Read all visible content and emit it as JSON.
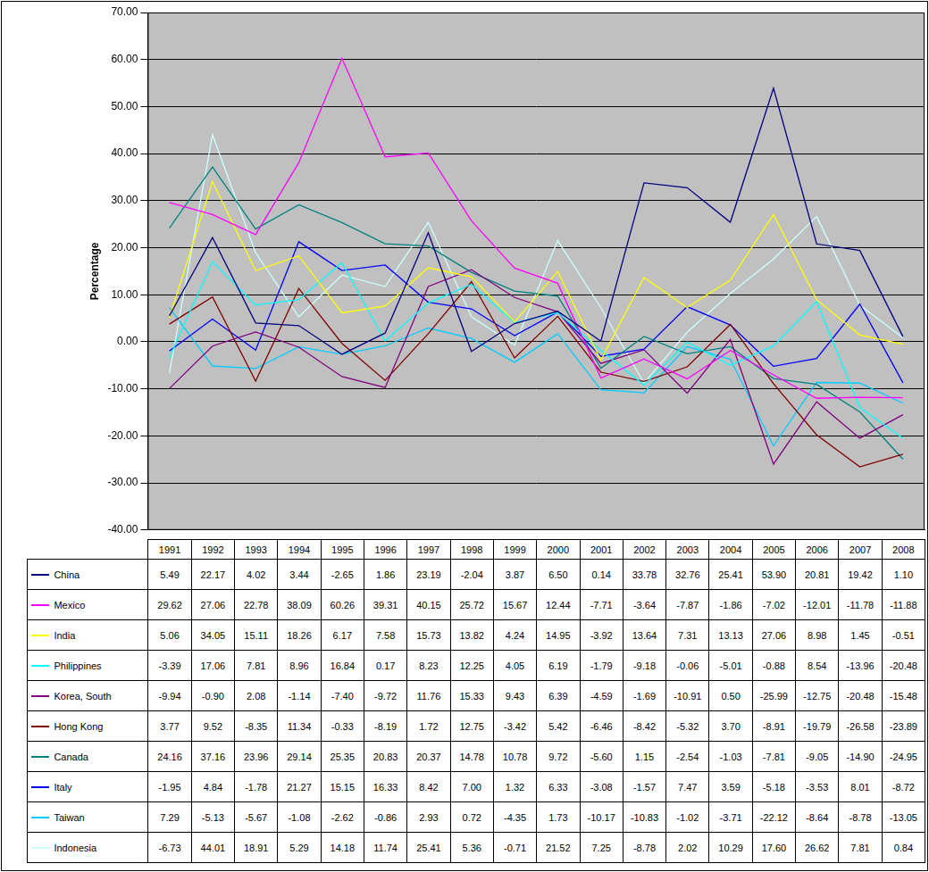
{
  "chart_data": {
    "type": "line",
    "y_label": "Percentage",
    "categories": [
      "1991",
      "1992",
      "1993",
      "1994",
      "1995",
      "1996",
      "1997",
      "1998",
      "1999",
      "2000",
      "2001",
      "2002",
      "2003",
      "2004",
      "2005",
      "2006",
      "2007",
      "2008"
    ],
    "ylim": [
      -40,
      70
    ],
    "yticks": [
      {
        "value": -40,
        "label": "-40.00"
      },
      {
        "value": -30,
        "label": "-30.00"
      },
      {
        "value": -20,
        "label": "-20.00"
      },
      {
        "value": -10,
        "label": "-10.00"
      },
      {
        "value": 0,
        "label": "0.00"
      },
      {
        "value": 10,
        "label": "10.00"
      },
      {
        "value": 20,
        "label": "20.00"
      },
      {
        "value": 30,
        "label": "30.00"
      },
      {
        "value": 40,
        "label": "40.00"
      },
      {
        "value": 50,
        "label": "50.00"
      },
      {
        "value": 60,
        "label": "60.00"
      },
      {
        "value": 70,
        "label": "70.00"
      }
    ],
    "grid": true,
    "legend": "bottom",
    "series": [
      {
        "name": "China",
        "color": "#000080",
        "values": [
          5.49,
          22.17,
          4.02,
          3.44,
          -2.65,
          1.86,
          23.19,
          -2.04,
          3.87,
          6.5,
          0.14,
          33.78,
          32.76,
          25.41,
          53.9,
          20.81,
          19.42,
          1.1
        ],
        "value_labels": [
          "5.49",
          "22.17",
          "4.02",
          "3.44",
          "-2.65",
          "1.86",
          "23.19",
          "-2.04",
          "3.87",
          "6.50",
          "0.14",
          "33.78",
          "32.76",
          "25.41",
          "53.90",
          "20.81",
          "19.42",
          "1.10"
        ]
      },
      {
        "name": "Mexico",
        "color": "#ff00ff",
        "values": [
          29.62,
          27.06,
          22.78,
          38.09,
          60.26,
          39.31,
          40.15,
          25.72,
          15.67,
          12.44,
          -7.71,
          -3.64,
          -7.87,
          -1.86,
          -7.02,
          -12.01,
          -11.78,
          -11.88
        ],
        "value_labels": [
          "29.62",
          "27.06",
          "22.78",
          "38.09",
          "60.26",
          "39.31",
          "40.15",
          "25.72",
          "15.67",
          "12.44",
          "-7.71",
          "-3.64",
          "-7.87",
          "-1.86",
          "-7.02",
          "-12.01",
          "-11.78",
          "-11.88"
        ]
      },
      {
        "name": "India",
        "color": "#ffff00",
        "values": [
          5.06,
          34.05,
          15.11,
          18.26,
          6.17,
          7.58,
          15.73,
          13.82,
          4.24,
          14.95,
          -3.92,
          13.64,
          7.31,
          13.13,
          27.06,
          8.98,
          1.45,
          -0.51
        ],
        "value_labels": [
          "5.06",
          "34.05",
          "15.11",
          "18.26",
          "6.17",
          "7.58",
          "15.73",
          "13.82",
          "4.24",
          "14.95",
          "-3.92",
          "13.64",
          "7.31",
          "13.13",
          "27.06",
          "8.98",
          "1.45",
          "-0.51"
        ]
      },
      {
        "name": "Philippines",
        "color": "#00ffff",
        "values": [
          -3.39,
          17.06,
          7.81,
          8.96,
          16.84,
          0.17,
          8.23,
          12.25,
          4.05,
          6.19,
          -1.79,
          -9.18,
          -0.06,
          -5.01,
          -0.88,
          8.54,
          -13.96,
          -20.48
        ],
        "value_labels": [
          "-3.39",
          "17.06",
          "7.81",
          "8.96",
          "16.84",
          "0.17",
          "8.23",
          "12.25",
          "4.05",
          "6.19",
          "-1.79",
          "-9.18",
          "-0.06",
          "-5.01",
          "-0.88",
          "8.54",
          "-13.96",
          "-20.48"
        ]
      },
      {
        "name": "Korea, South",
        "color": "#800080",
        "values": [
          -9.94,
          -0.9,
          2.08,
          -1.14,
          -7.4,
          -9.72,
          11.76,
          15.33,
          9.43,
          6.39,
          -4.59,
          -1.69,
          -10.91,
          0.5,
          -25.99,
          -12.75,
          -20.48,
          -15.48
        ],
        "value_labels": [
          "-9.94",
          "-0.90",
          "2.08",
          "-1.14",
          "-7.40",
          "-9.72",
          "11.76",
          "15.33",
          "9.43",
          "6.39",
          "-4.59",
          "-1.69",
          "-10.91",
          "0.50",
          "-25.99",
          "-12.75",
          "-20.48",
          "-15.48"
        ]
      },
      {
        "name": "Hong Kong",
        "color": "#800000",
        "values": [
          3.77,
          9.52,
          -8.35,
          11.34,
          -0.33,
          -8.19,
          1.72,
          12.75,
          -3.42,
          5.42,
          -6.46,
          -8.42,
          -5.32,
          3.7,
          -8.91,
          -19.79,
          -26.58,
          -23.89
        ],
        "value_labels": [
          "3.77",
          "9.52",
          "-8.35",
          "11.34",
          "-0.33",
          "-8.19",
          "1.72",
          "12.75",
          "-3.42",
          "5.42",
          "-6.46",
          "-8.42",
          "-5.32",
          "3.70",
          "-8.91",
          "-19.79",
          "-26.58",
          "-23.89"
        ]
      },
      {
        "name": "Canada",
        "color": "#008080",
        "values": [
          24.16,
          37.16,
          23.96,
          29.14,
          25.35,
          20.83,
          20.37,
          14.78,
          10.78,
          9.72,
          -5.6,
          1.15,
          -2.54,
          -1.03,
          -7.81,
          -9.05,
          -14.9,
          -24.95
        ],
        "value_labels": [
          "24.16",
          "37.16",
          "23.96",
          "29.14",
          "25.35",
          "20.83",
          "20.37",
          "14.78",
          "10.78",
          "9.72",
          "-5.60",
          "1.15",
          "-2.54",
          "-1.03",
          "-7.81",
          "-9.05",
          "-14.90",
          "-24.95"
        ]
      },
      {
        "name": "Italy",
        "color": "#0000ff",
        "values": [
          -1.95,
          4.84,
          -1.78,
          21.27,
          15.15,
          16.33,
          8.42,
          7.0,
          1.32,
          6.33,
          -3.08,
          -1.57,
          7.47,
          3.59,
          -5.18,
          -3.53,
          8.01,
          -8.72
        ],
        "value_labels": [
          "-1.95",
          "4.84",
          "-1.78",
          "21.27",
          "15.15",
          "16.33",
          "8.42",
          "7.00",
          "1.32",
          "6.33",
          "-3.08",
          "-1.57",
          "7.47",
          "3.59",
          "-5.18",
          "-3.53",
          "8.01",
          "-8.72"
        ]
      },
      {
        "name": "Taiwan",
        "color": "#00ccff",
        "values": [
          7.29,
          -5.13,
          -5.67,
          -1.08,
          -2.62,
          -0.86,
          2.93,
          0.72,
          -4.35,
          1.73,
          -10.17,
          -10.83,
          -1.02,
          -3.71,
          -22.12,
          -8.64,
          -8.78,
          -13.05
        ],
        "value_labels": [
          "7.29",
          "-5.13",
          "-5.67",
          "-1.08",
          "-2.62",
          "-0.86",
          "2.93",
          "0.72",
          "-4.35",
          "1.73",
          "-10.17",
          "-10.83",
          "-1.02",
          "-3.71",
          "-22.12",
          "-8.64",
          "-8.78",
          "-13.05"
        ]
      },
      {
        "name": "Indonesia",
        "color": "#ccffff",
        "values": [
          -6.73,
          44.01,
          18.91,
          5.29,
          14.18,
          11.74,
          25.41,
          5.36,
          -0.71,
          21.52,
          7.25,
          -8.78,
          2.02,
          10.29,
          17.6,
          26.62,
          7.81,
          0.84
        ],
        "value_labels": [
          "-6.73",
          "44.01",
          "18.91",
          "5.29",
          "14.18",
          "11.74",
          "25.41",
          "5.36",
          "-0.71",
          "21.52",
          "7.25",
          "-8.78",
          "2.02",
          "10.29",
          "17.60",
          "26.62",
          "7.81",
          "0.84"
        ]
      }
    ]
  }
}
